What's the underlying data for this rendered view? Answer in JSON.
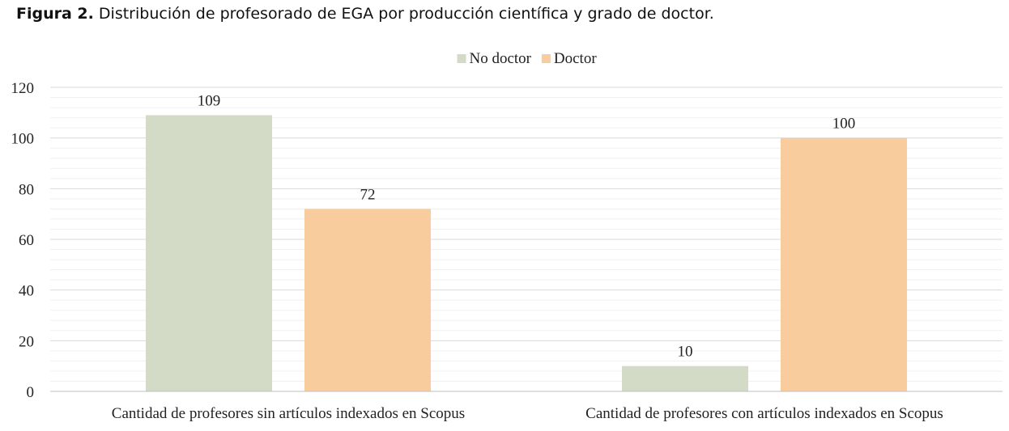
{
  "caption": {
    "label": "Figura 2.",
    "text": "Distribución de profesorado de EGA por producción científica y grado de doctor."
  },
  "chart_data": {
    "type": "bar",
    "title": "",
    "xlabel": "",
    "ylabel": "",
    "categories": [
      "Cantidad de profesores sin artículos indexados en Scopus",
      "Cantidad de profesores con artículos indexados en Scopus"
    ],
    "series": [
      {
        "name": "No doctor",
        "values": [
          109,
          10
        ],
        "color": "#d3dbc6"
      },
      {
        "name": "Doctor",
        "values": [
          72,
          100
        ],
        "color": "#f8cc9d"
      }
    ],
    "ylim": [
      0,
      120
    ],
    "yticks": [
      0,
      20,
      40,
      60,
      80,
      100,
      120
    ],
    "data_labels": true,
    "grid": true,
    "legend_position": "top-center"
  }
}
